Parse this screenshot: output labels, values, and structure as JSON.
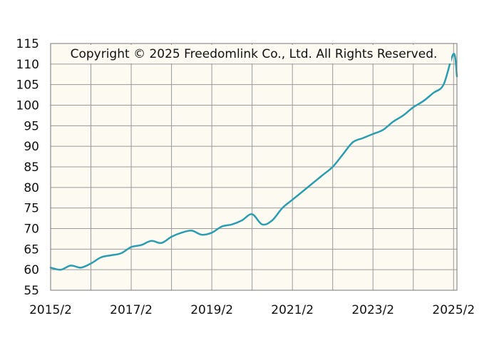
{
  "copyright": "Copyright © 2025 Freedomlink Co., Ltd. All Rights Reserved.",
  "colors": {
    "plot_background": "#fdfaf2",
    "grid": "#999999",
    "line": "#2a9db0",
    "axis": "#777777"
  },
  "chart_data": {
    "type": "line",
    "title": "",
    "xlabel": "",
    "ylabel": "",
    "grid": true,
    "ylim": [
      55,
      115
    ],
    "yticks": [
      55,
      60,
      65,
      70,
      75,
      80,
      85,
      90,
      95,
      100,
      105,
      110,
      115
    ],
    "xlim": [
      "2015/2",
      "2025/3"
    ],
    "xtick_labels": [
      "2015/2",
      "2017/2",
      "2019/2",
      "2021/2",
      "2023/2",
      "2025/2"
    ],
    "series": [
      {
        "x": [
          "2015/2",
          "2015/5",
          "2015/8",
          "2015/11",
          "2016/2",
          "2016/5",
          "2016/8",
          "2016/11",
          "2017/2",
          "2017/5",
          "2017/8",
          "2017/11",
          "2018/2",
          "2018/5",
          "2018/8",
          "2018/11",
          "2019/2",
          "2019/5",
          "2019/8",
          "2019/11",
          "2020/2",
          "2020/5",
          "2020/8",
          "2020/11",
          "2021/2",
          "2021/5",
          "2021/8",
          "2021/11",
          "2022/2",
          "2022/5",
          "2022/8",
          "2022/11",
          "2023/2",
          "2023/5",
          "2023/8",
          "2023/11",
          "2024/2",
          "2024/5",
          "2024/8",
          "2024/11",
          "2025/2",
          "2025/3"
        ],
        "values": [
          60.5,
          60.0,
          61.0,
          60.5,
          61.5,
          63.0,
          63.5,
          64.0,
          65.5,
          66.0,
          67.0,
          66.5,
          68.0,
          69.0,
          69.5,
          68.5,
          69.0,
          70.5,
          71.0,
          72.0,
          73.5,
          71.0,
          72.0,
          75.0,
          77.0,
          79.0,
          81.0,
          83.0,
          85.0,
          88.0,
          91.0,
          92.0,
          93.0,
          94.0,
          96.0,
          97.5,
          99.5,
          101.0,
          103.0,
          105.0,
          112.5,
          107.0
        ]
      }
    ]
  }
}
